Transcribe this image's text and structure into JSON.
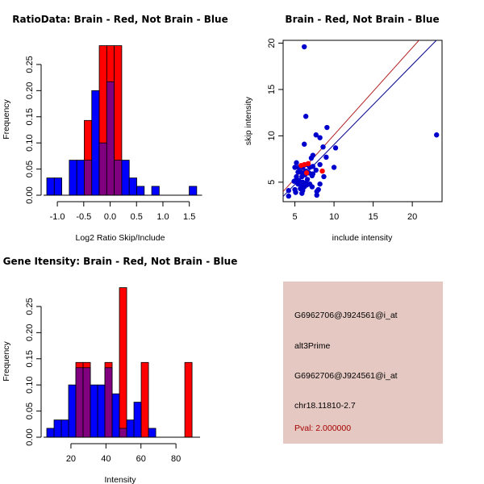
{
  "chart_data": [
    {
      "id": "ratio-hist",
      "type": "bar",
      "subtype": "overlaid-histogram",
      "title": "RatioData: Brain - Red, Not Brain - Blue",
      "xlabel": "Log2 Ratio Skip/Include",
      "ylabel": "Frequency",
      "xlim": [
        -1.2,
        1.65
      ],
      "ylim": [
        0,
        0.29
      ],
      "xticks": [
        -1.0,
        -0.5,
        0.0,
        0.5,
        1.0,
        1.5
      ],
      "xtick_labels": [
        "-1.0",
        "-0.5",
        "0.0",
        "0.5",
        "1.0",
        "1.5"
      ],
      "yticks": [
        0.0,
        0.05,
        0.1,
        0.15,
        0.2,
        0.25
      ],
      "ytick_labels": [
        "0.00",
        "0.05",
        "0.10",
        "0.15",
        "0.20",
        "0.25"
      ],
      "bin_start": -1.2,
      "bin_width": 0.142,
      "series": [
        {
          "name": "Not Brain",
          "color": "#0000ff",
          "values": [
            0.033,
            0.033,
            0,
            0.067,
            0.067,
            0.067,
            0.2,
            0.1,
            0.217,
            0.067,
            0.067,
            0.033,
            0.017,
            0,
            0.017,
            0,
            0,
            0,
            0,
            0.017
          ]
        },
        {
          "name": "Brain",
          "color": "#ff0000",
          "values": [
            0,
            0,
            0,
            0,
            0,
            0.143,
            0,
            0.286,
            0.286,
            0.286,
            0,
            0,
            0,
            0,
            0,
            0,
            0,
            0,
            0,
            0
          ]
        }
      ],
      "overlap_color": "#800080"
    },
    {
      "id": "intensity-scatter",
      "type": "scatter",
      "title": "Brain - Red, Not Brain - Blue",
      "xlabel": "include intensity",
      "ylabel": "skip intensity",
      "xlim": [
        3.5,
        23.8
      ],
      "ylim": [
        2.9,
        20.3
      ],
      "xticks": [
        5,
        10,
        15,
        20
      ],
      "yticks": [
        5,
        10,
        15,
        20
      ],
      "series": [
        {
          "name": "Not Brain",
          "color": "#0000cd",
          "points": [
            [
              6.2,
              19.6
            ],
            [
              6.4,
              12.1
            ],
            [
              9.1,
              10.9
            ],
            [
              7.7,
              10.1
            ],
            [
              8.2,
              9.8
            ],
            [
              6.2,
              9.1
            ],
            [
              8.6,
              8.8
            ],
            [
              10.2,
              8.7
            ],
            [
              23.1,
              10.1
            ],
            [
              9.0,
              7.7
            ],
            [
              7.3,
              7.9
            ],
            [
              7.1,
              7.6
            ],
            [
              10.0,
              6.6
            ],
            [
              8.2,
              6.9
            ],
            [
              7.7,
              6.3
            ],
            [
              5.2,
              7.1
            ],
            [
              5.0,
              6.6
            ],
            [
              5.5,
              6.6
            ],
            [
              6.0,
              6.6
            ],
            [
              6.5,
              6.9
            ],
            [
              6.9,
              6.6
            ],
            [
              7.3,
              6.7
            ],
            [
              5.4,
              6.1
            ],
            [
              5.7,
              6.1
            ],
            [
              6.1,
              6.0
            ],
            [
              6.4,
              6.2
            ],
            [
              6.8,
              6.0
            ],
            [
              7.3,
              5.9
            ],
            [
              5.2,
              5.6
            ],
            [
              5.9,
              5.6
            ],
            [
              6.3,
              5.8
            ],
            [
              7.2,
              5.7
            ],
            [
              8.7,
              5.6
            ],
            [
              4.9,
              5.1
            ],
            [
              5.2,
              5.3
            ],
            [
              5.5,
              5.2
            ],
            [
              6.0,
              5.0
            ],
            [
              6.6,
              5.3
            ],
            [
              6.4,
              4.9
            ],
            [
              5.4,
              4.8
            ],
            [
              5.9,
              4.6
            ],
            [
              6.2,
              4.5
            ],
            [
              6.9,
              4.8
            ],
            [
              7.2,
              4.5
            ],
            [
              8.2,
              4.8
            ],
            [
              5.0,
              4.2
            ],
            [
              5.1,
              3.9
            ],
            [
              5.7,
              4.3
            ],
            [
              6.0,
              4.1
            ],
            [
              6.5,
              4.7
            ],
            [
              5.9,
              3.8
            ],
            [
              7.8,
              4.0
            ],
            [
              8.0,
              4.2
            ],
            [
              7.8,
              3.6
            ],
            [
              4.2,
              4.1
            ],
            [
              4.2,
              3.5
            ]
          ]
        },
        {
          "name": "Brain",
          "color": "#ff0000",
          "points": [
            [
              5.8,
              6.8
            ],
            [
              6.2,
              6.9
            ],
            [
              6.7,
              7.0
            ],
            [
              8.5,
              6.2
            ],
            [
              6.5,
              6.0
            ]
          ]
        }
      ],
      "fit_lines": [
        {
          "name": "Brain fit",
          "color": "#b22222",
          "intercept": 0.7,
          "slope": 0.94
        },
        {
          "name": "Not Brain fit",
          "color": "#00008b",
          "intercept": 0.46,
          "slope": 0.86
        }
      ]
    },
    {
      "id": "gene-intensity-hist",
      "type": "bar",
      "subtype": "overlaid-histogram",
      "title": "Gene Itensity: Brain - Red, Not Brain - Blue",
      "xlabel": "Intensity",
      "ylabel": "Frequency",
      "xlim": [
        6.2,
        91
      ],
      "ylim": [
        0,
        0.29
      ],
      "xticks": [
        20,
        40,
        60,
        80
      ],
      "xtick_labels": [
        "20",
        "40",
        "60",
        "80"
      ],
      "yticks": [
        0.0,
        0.05,
        0.1,
        0.15,
        0.2,
        0.25
      ],
      "ytick_labels": [
        "0.00",
        "0.05",
        "0.10",
        "0.15",
        "0.20",
        "0.25"
      ],
      "bin_start": 6.2,
      "bin_width": 4.15,
      "series": [
        {
          "name": "Not Brain",
          "color": "#0000ff",
          "values": [
            0.017,
            0.033,
            0.033,
            0.1,
            0.133,
            0.133,
            0.1,
            0.1,
            0.133,
            0.083,
            0.017,
            0.033,
            0.067,
            0,
            0.017,
            0,
            0,
            0,
            0,
            0
          ]
        },
        {
          "name": "Brain",
          "color": "#ff0000",
          "values": [
            0,
            0,
            0,
            0,
            0.143,
            0.143,
            0,
            0,
            0.143,
            0,
            0.286,
            0,
            0,
            0.143,
            0,
            0,
            0,
            0,
            0,
            0.143
          ]
        }
      ],
      "overlap_color": "#800080"
    }
  ],
  "info_panel": {
    "lines": [
      "G6962706@J924561@i_at",
      "alt3Prime",
      "G6962706@J924561@i_at",
      "chr18.11810-2.7"
    ],
    "pval": "Pval: 2.000000",
    "background": "#e5c8c2",
    "pval_color": "#a50000"
  }
}
